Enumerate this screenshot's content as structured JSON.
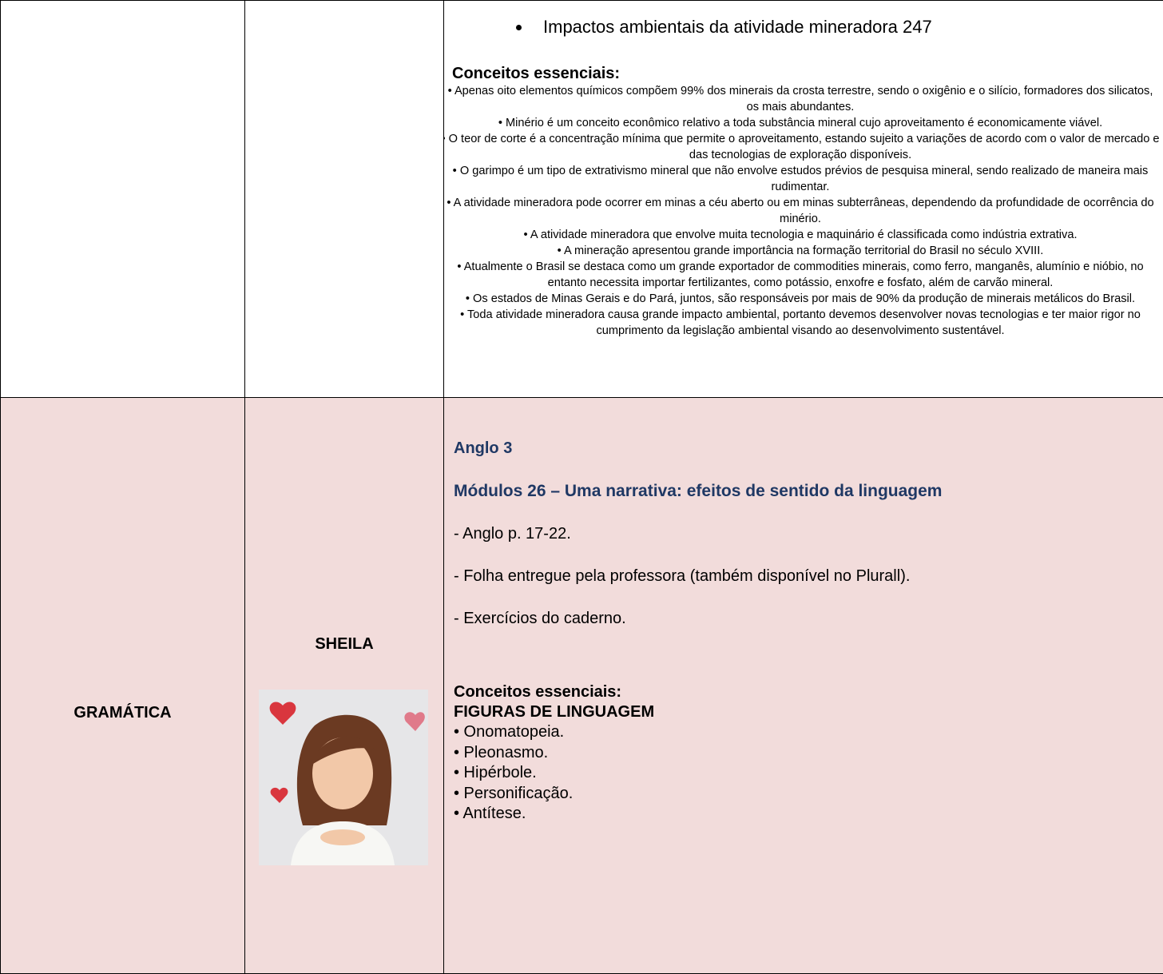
{
  "table": {
    "rows": [
      {
        "topic_bullet": "Impactos ambientais da atividade mineradora 247",
        "heading": "Conceitos essenciais:",
        "items": [
          "• Apenas oito elementos químicos compõem 99% dos minerais da crosta terrestre, sendo o oxigênio e o silício, formadores dos silicatos, os mais abundantes.",
          "• Minério é um conceito econômico relativo a toda substância mineral cujo aproveitamento é economicamente viável.",
          "• O teor de corte é a concentração mínima que permite o aproveitamento, estando sujeito a variações de acordo com o valor de mercado e das tecnologias de exploração disponíveis.",
          "• O garimpo é um tipo de extrativismo mineral que não envolve estudos prévios de pesquisa mineral, sendo realizado de maneira mais rudimentar.",
          "• A atividade mineradora pode ocorrer em minas a céu aberto ou em minas subterrâneas, dependendo da profundidade de ocorrência do minério.",
          "• A atividade mineradora que envolve muita tecnologia e maquinário é classificada como indústria extrativa.",
          "• A mineração apresentou grande importância na formação territorial do Brasil no século XVIII.",
          "• Atualmente o Brasil se destaca como um grande exportador de commodities minerais, como ferro, manganês, alumínio e nióbio, no entanto necessita importar fertilizantes, como potássio, enxofre e fosfato, além de carvão mineral.",
          "• Os estados de Minas Gerais e do Pará, juntos, são responsáveis por mais de 90% da produção de minerais metálicos do Brasil.",
          "• Toda atividade mineradora causa grande impacto ambiental, portanto devemos desenvolver novas tecnologias e ter maior rigor no cumprimento da legislação ambiental visando ao desenvolvimento sustentável."
        ]
      },
      {
        "subject": "GRAMÁTICA",
        "teacher": "SHEILA",
        "book": "Anglo 3",
        "module": "Módulos 26 – Uma narrativa: efeitos de sentido da linguagem",
        "tasks": [
          "- Anglo p. 17-22.",
          "- Folha entregue pela professora (também disponível no Plurall).",
          "- Exercícios do caderno."
        ],
        "heading": "Conceitos essenciais:",
        "subheading": "FIGURAS DE LINGUAGEM",
        "figures": [
          "• Onomatopeia.",
          "• Pleonasmo.",
          "• Hipérbole.",
          "• Personificação.",
          "• Antítese."
        ]
      }
    ]
  }
}
